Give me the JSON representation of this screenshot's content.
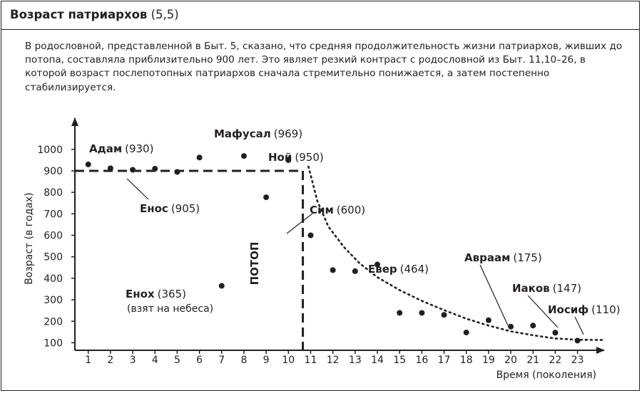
{
  "header": {
    "title_main": "Возраст патриархов",
    "title_ref": "(5,5)"
  },
  "description": "В родословной, представленной в Быт. 5, сказано, что средняя продолжительность жизни патриархов, живших до потопа, составляла приблизительно 900 лет. Это являет резкий контраст с родословной из Быт. 11,10–26, в которой возраст послепотопных патриархов сначала стремительно понижается, а затем постепенно стабилизируется.",
  "chart_data": {
    "type": "scatter",
    "xlabel": "Время (поколения)",
    "ylabel": "Возраст (в годах)",
    "x_ticks": [
      1,
      2,
      3,
      4,
      5,
      6,
      7,
      8,
      9,
      10,
      11,
      12,
      13,
      14,
      15,
      16,
      17,
      18,
      19,
      20,
      21,
      22,
      23
    ],
    "y_ticks": [
      100,
      200,
      300,
      400,
      500,
      600,
      700,
      800,
      900,
      1000
    ],
    "xlim": [
      0.4,
      24.2
    ],
    "ylim": [
      65,
      1145
    ],
    "grid": false,
    "points": [
      {
        "x": 1,
        "y": 930
      },
      {
        "x": 2,
        "y": 912
      },
      {
        "x": 3,
        "y": 905
      },
      {
        "x": 4,
        "y": 910
      },
      {
        "x": 5,
        "y": 895
      },
      {
        "x": 6,
        "y": 962
      },
      {
        "x": 7,
        "y": 365
      },
      {
        "x": 8,
        "y": 969
      },
      {
        "x": 9,
        "y": 777
      },
      {
        "x": 10,
        "y": 950
      },
      {
        "x": 11,
        "y": 600
      },
      {
        "x": 12,
        "y": 438
      },
      {
        "x": 13,
        "y": 433
      },
      {
        "x": 14,
        "y": 464
      },
      {
        "x": 15,
        "y": 239
      },
      {
        "x": 16,
        "y": 239
      },
      {
        "x": 17,
        "y": 230
      },
      {
        "x": 18,
        "y": 148
      },
      {
        "x": 19,
        "y": 205
      },
      {
        "x": 20,
        "y": 175
      },
      {
        "x": 21,
        "y": 180
      },
      {
        "x": 22,
        "y": 147
      },
      {
        "x": 23,
        "y": 110
      }
    ],
    "pre_flood_average": 900,
    "flood_label": "ПОТОП",
    "annotations": [
      {
        "name": "Адам",
        "value": "(930)"
      },
      {
        "name": "Енос",
        "value": "(905)"
      },
      {
        "name": "Мафусал",
        "value": "(969)"
      },
      {
        "name": "Ной",
        "value": "(950)"
      },
      {
        "name": "Енох",
        "value": "(365)",
        "note": "(взят на небеса)"
      },
      {
        "name": "Сим",
        "value": "(600)"
      },
      {
        "name": "Евер",
        "value": "(464)"
      },
      {
        "name": "Авраам",
        "value": "(175)"
      },
      {
        "name": "Иаков",
        "value": "(147)"
      },
      {
        "name": "Иосиф",
        "value": "(110)"
      }
    ]
  }
}
